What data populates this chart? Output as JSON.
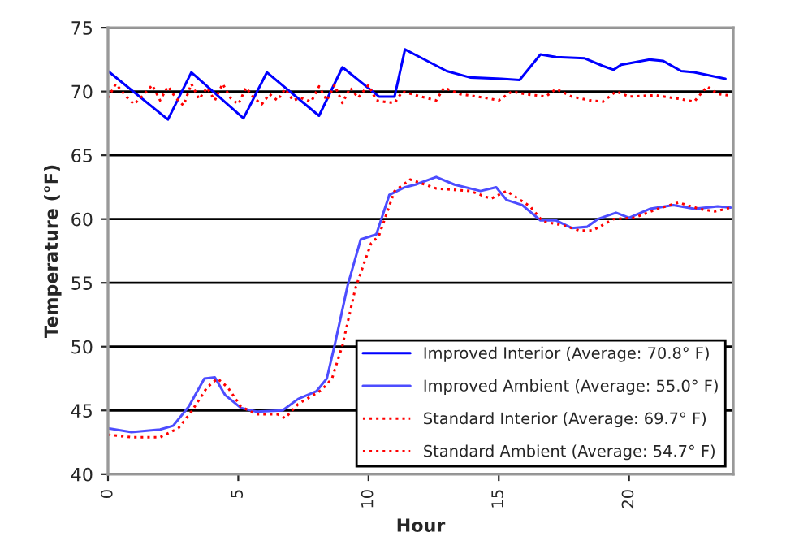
{
  "chart_data": {
    "type": "line",
    "xlabel": "Hour",
    "ylabel": "Temperature (°F)",
    "xlim": [
      0,
      24
    ],
    "xticks": [
      0,
      5,
      10,
      15,
      20
    ],
    "ylim": [
      40,
      75
    ],
    "yticks": [
      40,
      45,
      50,
      55,
      60,
      65,
      70,
      75
    ],
    "grid": "y",
    "legend": "bottom right",
    "marker": "none",
    "series": [
      {
        "name": "Improved Interior (Average: 70.8° F)",
        "color": "#0000ff",
        "line_style": "solid",
        "x": [
          0,
          2.3,
          3.2,
          5.2,
          6.1,
          8.1,
          9.0,
          10.4,
          11.0,
          11.4,
          13.0,
          13.9,
          15.1,
          15.8,
          16.6,
          17.2,
          18.3,
          19.0,
          19.4,
          19.7,
          20.8,
          21.3,
          22.0,
          22.5,
          23.7
        ],
        "values": [
          71.6,
          67.8,
          71.5,
          67.9,
          71.5,
          68.1,
          71.9,
          69.6,
          69.6,
          73.3,
          71.6,
          71.1,
          71.0,
          70.9,
          72.9,
          72.7,
          72.6,
          72.0,
          71.7,
          72.1,
          72.5,
          72.4,
          71.6,
          71.5,
          71.0
        ]
      },
      {
        "name": "Improved Ambient (Average: 55.0° F)",
        "color": "#4d4dff",
        "line_style": "solid",
        "x": [
          0,
          0.9,
          2.0,
          2.5,
          3.1,
          3.7,
          4.1,
          4.5,
          5.1,
          5.7,
          6.7,
          7.3,
          8.0,
          8.4,
          8.7,
          9.2,
          9.7,
          10.3,
          10.8,
          11.4,
          11.8,
          12.6,
          13.3,
          14.3,
          14.9,
          15.3,
          15.9,
          16.6,
          17.2,
          17.8,
          18.4,
          18.8,
          19.5,
          20.0,
          20.8,
          21.7,
          22.5,
          23.4,
          23.9
        ],
        "values": [
          43.6,
          43.3,
          43.5,
          43.8,
          45.3,
          47.5,
          47.6,
          46.2,
          45.2,
          44.9,
          45.0,
          45.9,
          46.5,
          47.5,
          50.1,
          54.8,
          58.4,
          58.8,
          61.9,
          62.5,
          62.7,
          63.3,
          62.7,
          62.2,
          62.5,
          61.5,
          61.1,
          59.9,
          59.9,
          59.3,
          59.4,
          60.0,
          60.5,
          60.1,
          60.8,
          61.1,
          60.8,
          61.0,
          60.9
        ]
      },
      {
        "name": "Standard Interior (Average: 69.7° F)",
        "color": "#ff0000",
        "line_style": "dotted",
        "x": [
          0,
          0.3,
          0.7,
          1.0,
          1.3,
          1.7,
          2.0,
          2.3,
          2.6,
          2.9,
          3.2,
          3.5,
          3.8,
          4.1,
          4.4,
          4.7,
          5.0,
          5.3,
          5.6,
          5.9,
          6.2,
          6.5,
          6.8,
          7.1,
          7.4,
          7.8,
          8.1,
          8.4,
          8.7,
          9.0,
          9.3,
          9.6,
          10.0,
          10.3,
          10.6,
          11.0,
          11.3,
          12.0,
          12.6,
          12.9,
          13.5,
          14.5,
          15.0,
          15.5,
          16.0,
          16.8,
          17.2,
          17.8,
          18.5,
          19.0,
          19.5,
          20.0,
          21.0,
          22.0,
          22.5,
          23.0,
          23.4,
          23.8
        ],
        "values": [
          69.5,
          70.6,
          69.6,
          69.0,
          69.6,
          70.5,
          69.3,
          70.4,
          69.5,
          68.9,
          70.6,
          69.4,
          70.3,
          69.3,
          70.6,
          69.5,
          69.0,
          70.3,
          69.5,
          69.0,
          69.8,
          69.3,
          70.2,
          69.3,
          69.5,
          69.2,
          70.4,
          69.3,
          70.5,
          69.1,
          70.3,
          69.5,
          70.5,
          69.3,
          69.2,
          69.1,
          70.0,
          69.6,
          69.3,
          70.3,
          69.8,
          69.5,
          69.3,
          70.0,
          69.8,
          69.6,
          70.2,
          69.6,
          69.3,
          69.2,
          70.0,
          69.6,
          69.7,
          69.4,
          69.2,
          70.4,
          69.8,
          69.7
        ]
      },
      {
        "name": "Standard Ambient (Average: 54.7° F)",
        "color": "#ff0000",
        "line_style": "dotted",
        "x": [
          0,
          0.9,
          2.0,
          2.7,
          3.2,
          3.8,
          4.2,
          4.6,
          5.1,
          5.7,
          6.5,
          6.8,
          7.3,
          8.2,
          8.6,
          9.0,
          9.5,
          10.1,
          10.4,
          11.0,
          11.6,
          12.6,
          13.9,
          14.7,
          15.3,
          16.2,
          16.7,
          17.5,
          18.1,
          18.6,
          19.4,
          20.2,
          21.1,
          21.9,
          22.7,
          23.3,
          23.9
        ],
        "values": [
          43.1,
          42.9,
          42.9,
          43.6,
          44.9,
          46.8,
          47.5,
          46.8,
          45.3,
          44.7,
          44.7,
          44.4,
          45.5,
          46.6,
          47.5,
          50.1,
          54.6,
          58.1,
          58.7,
          62.2,
          63.1,
          62.4,
          62.2,
          61.6,
          62.2,
          61.0,
          59.8,
          59.5,
          59.1,
          59.1,
          60.0,
          60.1,
          60.8,
          61.3,
          60.8,
          60.6,
          60.9
        ]
      }
    ]
  }
}
